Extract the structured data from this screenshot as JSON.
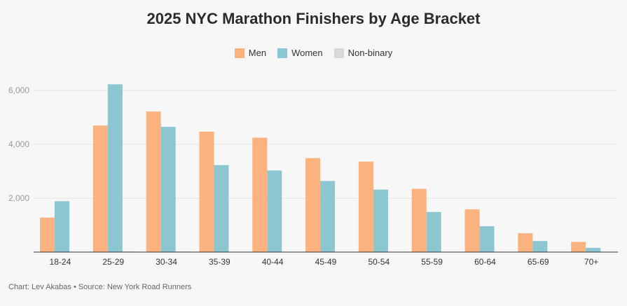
{
  "chart_data": {
    "type": "bar",
    "title": "2025 NYC Marathon Finishers by Age Bracket",
    "categories": [
      "18-24",
      "25-29",
      "30-34",
      "35-39",
      "40-44",
      "45-49",
      "50-54",
      "55-59",
      "60-64",
      "65-69",
      "70+"
    ],
    "series": [
      {
        "name": "Men",
        "color": "#fbb27f",
        "values": [
          1280,
          4700,
          5220,
          4470,
          4250,
          3490,
          3360,
          2350,
          1590,
          700,
          380
        ]
      },
      {
        "name": "Women",
        "color": "#8cc6d0",
        "values": [
          1890,
          6230,
          4650,
          3230,
          3030,
          2640,
          2320,
          1490,
          960,
          410,
          160
        ]
      },
      {
        "name": "Non-binary",
        "color": "#d9d9d9",
        "values": [
          0,
          25,
          25,
          0,
          0,
          0,
          0,
          0,
          0,
          0,
          0
        ]
      }
    ],
    "ylim": [
      0,
      6500
    ],
    "yticks": [
      2000,
      4000,
      6000
    ],
    "ytick_labels": [
      "2,000",
      "4,000",
      "6,000"
    ],
    "xlabel": "",
    "ylabel": "",
    "grid": true,
    "legend": "top-center"
  },
  "footer": "Chart: Lev Akabas • Source: New York Road Runners"
}
